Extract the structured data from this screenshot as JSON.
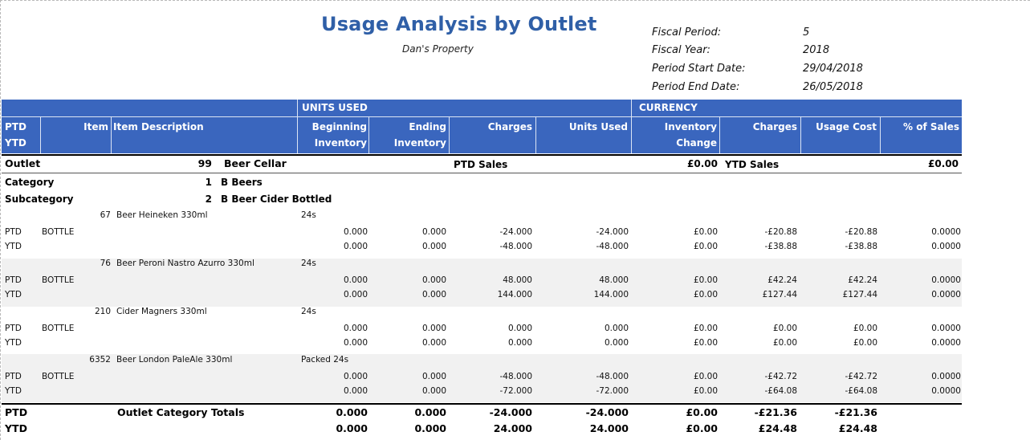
{
  "report": {
    "title": "Usage Analysis by Outlet",
    "property": "Dan's Property"
  },
  "meta": [
    {
      "label": "Fiscal Period:",
      "value": "5"
    },
    {
      "label": "Fiscal Year:",
      "value": "2018"
    },
    {
      "label": "Period Start Date:",
      "value": "29/04/2018"
    },
    {
      "label": "Period End Date:",
      "value": "26/05/2018"
    }
  ],
  "header": {
    "group_units": "UNITS  USED",
    "group_currency": "CURRENCY",
    "ptd": "PTD",
    "ytd": "YTD",
    "item": "Item",
    "item_description": "Item Description",
    "beginning_1": "Beginning",
    "beginning_2": "Inventory",
    "ending_1": "Ending",
    "ending_2": "Inventory",
    "charges": "Charges",
    "units_used": "Units Used",
    "inv_change_1": "Inventory",
    "inv_change_2": "Change",
    "charges_cur": "Charges",
    "usage_cost": "Usage Cost",
    "pct_sales": "% of Sales"
  },
  "outlet": {
    "label": "Outlet",
    "code": "99",
    "name": "Beer Cellar",
    "ptd_sales_label": "PTD Sales",
    "ptd_sales_value": "£0.00",
    "ytd_sales_label": "YTD Sales",
    "ytd_sales_value": "£0.00"
  },
  "category": {
    "label": "Category",
    "code": "1",
    "name": "B Beers"
  },
  "subcategory": {
    "label": "Subcategory",
    "code": "2",
    "name": "B Beer Cider Bottled"
  },
  "items": [
    {
      "code": "67",
      "name": "Beer Heineken 330ml",
      "pack": "24s",
      "unit": "BOTTLE",
      "ptd": {
        "label": "PTD",
        "beg": "0.000",
        "end": "0.000",
        "charges": "-24.000",
        "used": "-24.000",
        "inv_change": "£0.00",
        "charges_cur": "-£20.88",
        "usage_cost": "-£20.88",
        "pct": "0.0000"
      },
      "ytd": {
        "label": "YTD",
        "beg": "0.000",
        "end": "0.000",
        "charges": "-48.000",
        "used": "-48.000",
        "inv_change": "£0.00",
        "charges_cur": "-£38.88",
        "usage_cost": "-£38.88",
        "pct": "0.0000"
      }
    },
    {
      "code": "76",
      "name": "Beer Peroni Nastro Azurro 330ml",
      "pack": "24s",
      "unit": "BOTTLE",
      "ptd": {
        "label": "PTD",
        "beg": "0.000",
        "end": "0.000",
        "charges": "48.000",
        "used": "48.000",
        "inv_change": "£0.00",
        "charges_cur": "£42.24",
        "usage_cost": "£42.24",
        "pct": "0.0000"
      },
      "ytd": {
        "label": "YTD",
        "beg": "0.000",
        "end": "0.000",
        "charges": "144.000",
        "used": "144.000",
        "inv_change": "£0.00",
        "charges_cur": "£127.44",
        "usage_cost": "£127.44",
        "pct": "0.0000"
      }
    },
    {
      "code": "210",
      "name": "Cider Magners 330ml",
      "pack": "24s",
      "unit": "BOTTLE",
      "ptd": {
        "label": "PTD",
        "beg": "0.000",
        "end": "0.000",
        "charges": "0.000",
        "used": "0.000",
        "inv_change": "£0.00",
        "charges_cur": "£0.00",
        "usage_cost": "£0.00",
        "pct": "0.0000"
      },
      "ytd": {
        "label": "YTD",
        "beg": "0.000",
        "end": "0.000",
        "charges": "0.000",
        "used": "0.000",
        "inv_change": "£0.00",
        "charges_cur": "£0.00",
        "usage_cost": "£0.00",
        "pct": "0.0000"
      }
    },
    {
      "code": "6352",
      "name": "Beer London PaleAle 330ml",
      "pack": "Packed 24s",
      "unit": "BOTTLE",
      "ptd": {
        "label": "PTD",
        "beg": "0.000",
        "end": "0.000",
        "charges": "-48.000",
        "used": "-48.000",
        "inv_change": "£0.00",
        "charges_cur": "-£42.72",
        "usage_cost": "-£42.72",
        "pct": "0.0000"
      },
      "ytd": {
        "label": "YTD",
        "beg": "0.000",
        "end": "0.000",
        "charges": "-72.000",
        "used": "-72.000",
        "inv_change": "£0.00",
        "charges_cur": "-£64.08",
        "usage_cost": "-£64.08",
        "pct": "0.0000"
      }
    }
  ],
  "totals": {
    "label": "Outlet Category Totals",
    "ptd": {
      "label": "PTD",
      "beg": "0.000",
      "end": "0.000",
      "charges": "-24.000",
      "used": "-24.000",
      "inv_change": "£0.00",
      "charges_cur": "-£21.36",
      "usage_cost": "-£21.36"
    },
    "ytd": {
      "label": "YTD",
      "beg": "0.000",
      "end": "0.000",
      "charges": "24.000",
      "used": "24.000",
      "inv_change": "£0.00",
      "charges_cur": "£24.48",
      "usage_cost": "£24.48"
    }
  }
}
